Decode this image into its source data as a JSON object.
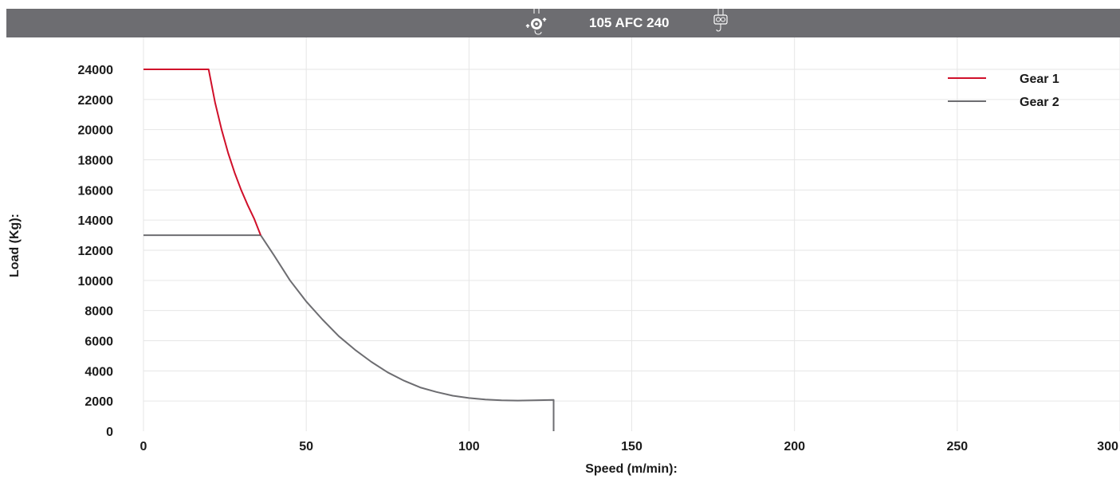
{
  "header": {
    "title": "105 AFC 240",
    "left_icon": "gear-hoist-icon",
    "right_icon": "hook-icon",
    "background_color": "#6d6d71"
  },
  "chart_data": {
    "type": "line",
    "title": "105 AFC 240",
    "xlabel": "Speed (m/min):",
    "ylabel": "Load (Kg):",
    "xlim": [
      0,
      300
    ],
    "ylim": [
      0,
      24000
    ],
    "x_ticks": [
      0,
      50,
      100,
      150,
      200,
      250,
      300
    ],
    "y_ticks": [
      0,
      2000,
      4000,
      6000,
      8000,
      10000,
      12000,
      14000,
      16000,
      18000,
      20000,
      22000,
      24000
    ],
    "grid": true,
    "legend_position": "top-right",
    "series": [
      {
        "name": "Gear 1",
        "color": "#d0102a",
        "x": [
          0,
          20,
          22,
          24,
          26,
          28,
          30,
          32,
          34,
          36
        ],
        "y": [
          24000,
          24000,
          21800,
          20000,
          18450,
          17150,
          16000,
          15000,
          14100,
          13000
        ]
      },
      {
        "name": "Gear 2",
        "color": "#6d6d71",
        "x": [
          0,
          36,
          40,
          45,
          50,
          55,
          60,
          65,
          70,
          75,
          80,
          85,
          90,
          95,
          100,
          105,
          110,
          115,
          120,
          126,
          126
        ],
        "y": [
          13000,
          13000,
          11700,
          10000,
          8600,
          7400,
          6300,
          5400,
          4600,
          3900,
          3350,
          2900,
          2600,
          2350,
          2200,
          2100,
          2050,
          2030,
          2050,
          2080,
          0
        ]
      }
    ]
  }
}
